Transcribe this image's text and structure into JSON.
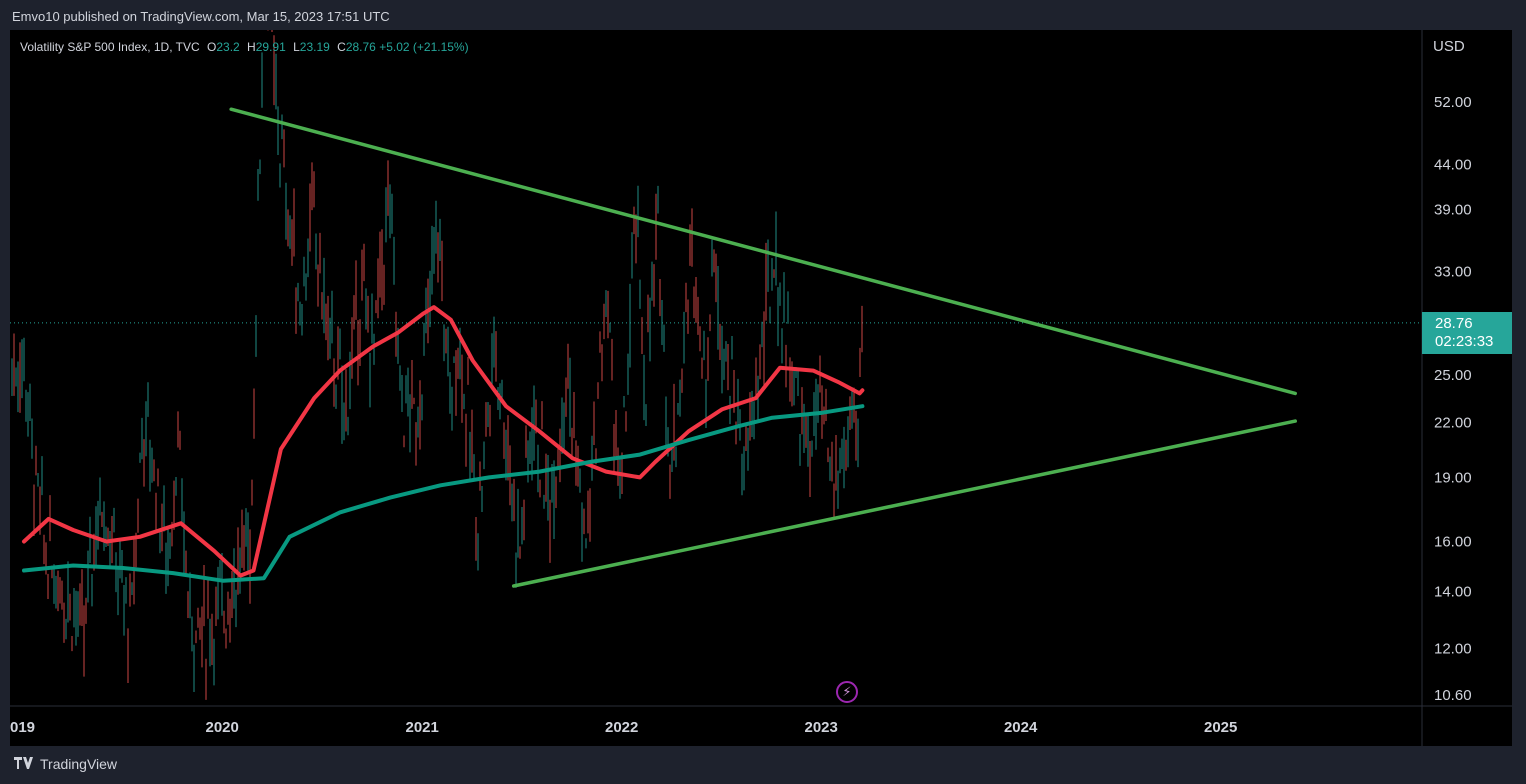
{
  "header": {
    "publisher_line": "Emvo10 published on TradingView.com, Mar 15, 2023 17:51 UTC"
  },
  "legend": {
    "symbol": "Volatility S&P 500 Index, 1D, TVC",
    "open_label": "O",
    "open_value": "23.2",
    "high_label": "H",
    "high_value": "29.91",
    "low_label": "L",
    "low_value": "23.19",
    "close_label": "C",
    "close_value": "28.76",
    "change": "+5.02 (+21.15%)"
  },
  "axis": {
    "currency": "USD"
  },
  "price_badge": {
    "price": "28.76",
    "countdown": "02:23:33"
  },
  "footer": {
    "brand": "TradingView"
  },
  "colors": {
    "up": "#26a69a",
    "down": "#ef5350",
    "trendline": "#4caf50",
    "ma_fast": "#f23645",
    "ma_slow": "#089981"
  },
  "icons": {
    "logo": "tradingview-logo-icon",
    "event": "lightning-icon"
  },
  "chart_data": {
    "type": "line",
    "scale": "log",
    "x_range": [
      "2019-01-01",
      "2025-09-01"
    ],
    "ylim": [
      10.0,
      80.0
    ],
    "y_ticks": [
      52.0,
      44.0,
      39.0,
      33.0,
      25.0,
      22.0,
      19.0,
      16.0,
      14.0,
      12.0,
      10.6
    ],
    "y_tick_labels": [
      "52.00",
      "44.00",
      "39.00",
      "33.00",
      "25.00",
      "22.00",
      "19.00",
      "16.00",
      "14.00",
      "12.00",
      "10.60"
    ],
    "x_ticks": [
      "2019-01-01",
      "2020-01-01",
      "2021-01-01",
      "2022-01-01",
      "2023-01-01",
      "2024-01-01",
      "2025-01-01"
    ],
    "x_tick_labels": [
      "019",
      "2020",
      "2021",
      "2022",
      "2023",
      "2024",
      "2025"
    ],
    "last_price": 28.76,
    "price_series": [
      {
        "date": "2019-01-03",
        "value": 25.5
      },
      {
        "date": "2019-01-20",
        "value": 19.0
      },
      {
        "date": "2019-02-10",
        "value": 15.5
      },
      {
        "date": "2019-03-05",
        "value": 14.5
      },
      {
        "date": "2019-04-01",
        "value": 13.5
      },
      {
        "date": "2019-04-20",
        "value": 12.2
      },
      {
        "date": "2019-05-10",
        "value": 16.5
      },
      {
        "date": "2019-05-28",
        "value": 18.0
      },
      {
        "date": "2019-06-20",
        "value": 14.8
      },
      {
        "date": "2019-07-15",
        "value": 12.5
      },
      {
        "date": "2019-08-06",
        "value": 22.0
      },
      {
        "date": "2019-08-28",
        "value": 19.5
      },
      {
        "date": "2019-09-20",
        "value": 15.0
      },
      {
        "date": "2019-10-08",
        "value": 20.5
      },
      {
        "date": "2019-11-01",
        "value": 13.0
      },
      {
        "date": "2019-12-01",
        "value": 12.5
      },
      {
        "date": "2020-01-01",
        "value": 13.5
      },
      {
        "date": "2020-02-01",
        "value": 15.0
      },
      {
        "date": "2020-02-20",
        "value": 16.0
      },
      {
        "date": "2020-03-05",
        "value": 40.0
      },
      {
        "date": "2020-03-16",
        "value": 80.0
      },
      {
        "date": "2020-04-01",
        "value": 55.0
      },
      {
        "date": "2020-04-25",
        "value": 40.0
      },
      {
        "date": "2020-05-20",
        "value": 30.0
      },
      {
        "date": "2020-06-11",
        "value": 38.0
      },
      {
        "date": "2020-07-10",
        "value": 28.0
      },
      {
        "date": "2020-08-10",
        "value": 22.5
      },
      {
        "date": "2020-09-08",
        "value": 31.0
      },
      {
        "date": "2020-10-01",
        "value": 26.5
      },
      {
        "date": "2020-10-30",
        "value": 40.0
      },
      {
        "date": "2020-11-20",
        "value": 23.5
      },
      {
        "date": "2020-12-20",
        "value": 22.0
      },
      {
        "date": "2021-01-28",
        "value": 37.0
      },
      {
        "date": "2021-02-20",
        "value": 22.5
      },
      {
        "date": "2021-03-05",
        "value": 28.0
      },
      {
        "date": "2021-04-10",
        "value": 17.0
      },
      {
        "date": "2021-05-12",
        "value": 27.5
      },
      {
        "date": "2021-06-25",
        "value": 15.5
      },
      {
        "date": "2021-07-19",
        "value": 22.5
      },
      {
        "date": "2021-08-20",
        "value": 17.5
      },
      {
        "date": "2021-09-20",
        "value": 25.5
      },
      {
        "date": "2021-10-25",
        "value": 15.5
      },
      {
        "date": "2021-12-01",
        "value": 31.0
      },
      {
        "date": "2021-12-28",
        "value": 17.5
      },
      {
        "date": "2022-01-25",
        "value": 38.5
      },
      {
        "date": "2022-02-10",
        "value": 24.0
      },
      {
        "date": "2022-03-07",
        "value": 36.5
      },
      {
        "date": "2022-03-29",
        "value": 19.0
      },
      {
        "date": "2022-05-09",
        "value": 35.0
      },
      {
        "date": "2022-06-01",
        "value": 24.5
      },
      {
        "date": "2022-06-13",
        "value": 34.0
      },
      {
        "date": "2022-07-15",
        "value": 25.0
      },
      {
        "date": "2022-08-15",
        "value": 19.5
      },
      {
        "date": "2022-09-10",
        "value": 26.0
      },
      {
        "date": "2022-10-03",
        "value": 34.0
      },
      {
        "date": "2022-11-05",
        "value": 25.5
      },
      {
        "date": "2022-12-05",
        "value": 20.0
      },
      {
        "date": "2022-12-28",
        "value": 23.0
      },
      {
        "date": "2023-01-20",
        "value": 18.5
      },
      {
        "date": "2023-02-10",
        "value": 20.0
      },
      {
        "date": "2023-02-23",
        "value": 22.5
      },
      {
        "date": "2023-03-07",
        "value": 19.0
      },
      {
        "date": "2023-03-13",
        "value": 29.9
      },
      {
        "date": "2023-03-15",
        "value": 28.76
      }
    ],
    "series": [
      {
        "values": [
          {
            "date": "2019-01-01",
            "value": 16.0
          },
          {
            "date": "2019-02-15",
            "value": 17.0
          },
          {
            "date": "2019-04-01",
            "value": 16.5
          },
          {
            "date": "2019-06-01",
            "value": 16.0
          },
          {
            "date": "2019-08-01",
            "value": 16.2
          },
          {
            "date": "2019-10-15",
            "value": 16.8
          },
          {
            "date": "2019-12-15",
            "value": 15.6
          },
          {
            "date": "2020-02-01",
            "value": 14.6
          },
          {
            "date": "2020-02-25",
            "value": 14.8
          },
          {
            "date": "2020-04-15",
            "value": 20.5
          },
          {
            "date": "2020-06-15",
            "value": 23.5
          },
          {
            "date": "2020-08-01",
            "value": 25.3
          },
          {
            "date": "2020-10-01",
            "value": 27.0
          },
          {
            "date": "2020-11-15",
            "value": 28.0
          },
          {
            "date": "2021-01-01",
            "value": 29.5
          },
          {
            "date": "2021-01-20",
            "value": 30.0
          },
          {
            "date": "2021-02-20",
            "value": 29.0
          },
          {
            "date": "2021-04-01",
            "value": 26.0
          },
          {
            "date": "2021-06-01",
            "value": 23.0
          },
          {
            "date": "2021-08-01",
            "value": 21.5
          },
          {
            "date": "2021-10-01",
            "value": 20.0
          },
          {
            "date": "2021-12-01",
            "value": 19.3
          },
          {
            "date": "2022-02-01",
            "value": 19.0
          },
          {
            "date": "2022-03-01",
            "value": 19.8
          },
          {
            "date": "2022-05-01",
            "value": 21.5
          },
          {
            "date": "2022-07-01",
            "value": 22.8
          },
          {
            "date": "2022-09-01",
            "value": 23.5
          },
          {
            "date": "2022-10-15",
            "value": 25.5
          },
          {
            "date": "2022-12-15",
            "value": 25.3
          },
          {
            "date": "2023-02-01",
            "value": 24.5
          },
          {
            "date": "2023-03-10",
            "value": 23.8
          },
          {
            "date": "2023-03-15",
            "value": 24.0
          }
        ]
      },
      {
        "values": [
          {
            "date": "2019-01-01",
            "value": 14.8
          },
          {
            "date": "2019-04-01",
            "value": 15.0
          },
          {
            "date": "2019-07-01",
            "value": 14.9
          },
          {
            "date": "2019-10-01",
            "value": 14.7
          },
          {
            "date": "2020-01-01",
            "value": 14.4
          },
          {
            "date": "2020-03-15",
            "value": 14.5
          },
          {
            "date": "2020-05-01",
            "value": 16.2
          },
          {
            "date": "2020-08-01",
            "value": 17.3
          },
          {
            "date": "2020-11-01",
            "value": 18.0
          },
          {
            "date": "2021-02-01",
            "value": 18.6
          },
          {
            "date": "2021-05-01",
            "value": 19.0
          },
          {
            "date": "2021-08-01",
            "value": 19.3
          },
          {
            "date": "2021-11-01",
            "value": 19.8
          },
          {
            "date": "2022-02-01",
            "value": 20.2
          },
          {
            "date": "2022-05-01",
            "value": 21.0
          },
          {
            "date": "2022-08-01",
            "value": 21.8
          },
          {
            "date": "2022-10-01",
            "value": 22.3
          },
          {
            "date": "2023-01-01",
            "value": 22.6
          },
          {
            "date": "2023-03-15",
            "value": 23.0
          }
        ]
      }
    ],
    "trendlines": [
      {
        "start": {
          "date": "2020-01-15",
          "value": 51.0
        },
        "end": {
          "date": "2025-05-15",
          "value": 23.8
        }
      },
      {
        "start": {
          "date": "2021-06-15",
          "value": 14.2
        },
        "end": {
          "date": "2025-05-15",
          "value": 22.1
        }
      }
    ]
  }
}
